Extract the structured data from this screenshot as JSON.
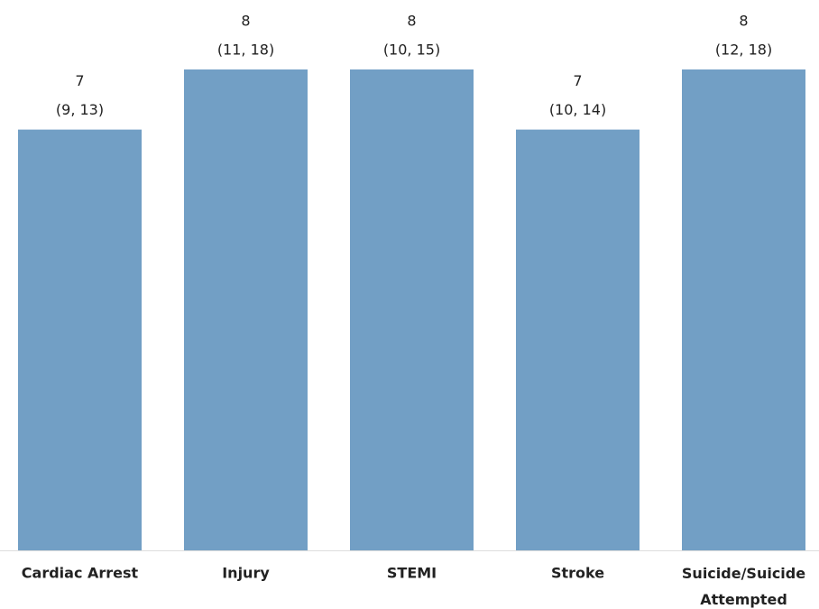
{
  "chart_data": {
    "type": "bar",
    "categories": [
      "Cardiac Arrest",
      "Injury",
      "STEMI",
      "Stroke",
      "Suicide/Suicide Attempted"
    ],
    "values": [
      7,
      8,
      8,
      7,
      8
    ],
    "interval_labels": [
      "(9, 13)",
      "(11, 18)",
      "(10, 15)",
      "(10, 14)",
      "(12, 18)"
    ],
    "color": "#729fc5",
    "ylim": [
      0,
      8
    ]
  }
}
